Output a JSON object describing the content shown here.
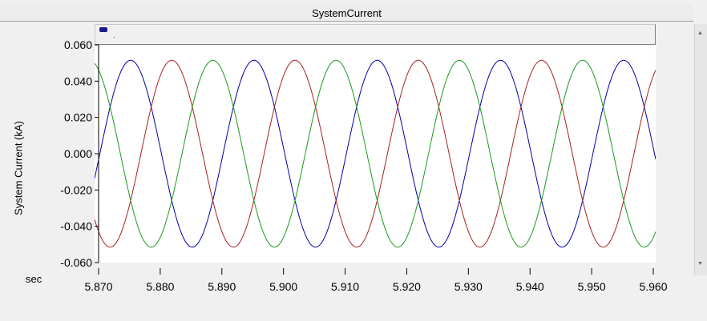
{
  "window": {
    "title": "SystemCurrent"
  },
  "chart_data": {
    "type": "line",
    "title": "SystemCurrent",
    "ylabel": "System Current (kA)",
    "xlabel": "sec",
    "xlim": [
      5.87,
      5.96
    ],
    "ylim": [
      -0.06,
      0.06
    ],
    "x_ticks": [
      "5.870",
      "5.880",
      "5.890",
      "5.900",
      "5.910",
      "5.920",
      "5.930",
      "5.940",
      "5.950",
      "5.960"
    ],
    "y_ticks": [
      "0.060",
      "0.040",
      "0.020",
      "0.000",
      "-0.020",
      "-0.040",
      "-0.060"
    ],
    "grid": false,
    "waveform": {
      "amplitude": 0.0515,
      "frequency_hz": 50,
      "x_of_blue_zero_up": 5.8702
    },
    "series": [
      {
        "color": "#0000a8",
        "phase_deg": 0
      },
      {
        "color": "#a82020",
        "phase_deg": -120
      },
      {
        "color": "#1a9a1a",
        "phase_deg": 120
      }
    ]
  }
}
